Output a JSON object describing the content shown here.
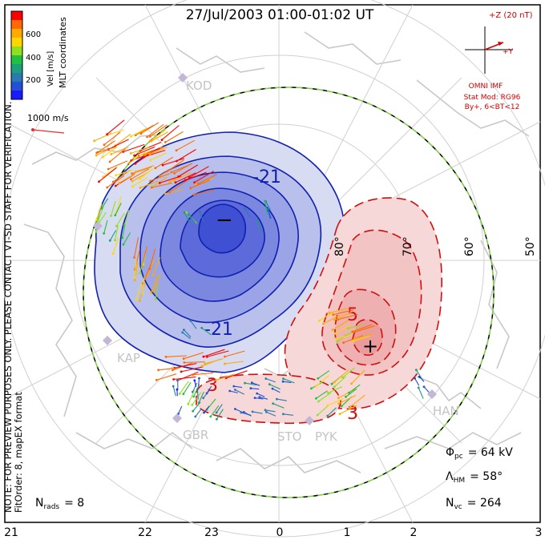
{
  "title": "27/Jul/2003 01:00-01:02 UT",
  "colorbar": {
    "ticks": [
      "600",
      "400",
      "200"
    ],
    "label": "Vel [m/s]",
    "colors": [
      "#ff0000",
      "#ff6a00",
      "#ffaa00",
      "#ffd700",
      "#90e020",
      "#20c040",
      "#1aa07a",
      "#2a7ab0",
      "#2450d8",
      "#1a1aff"
    ]
  },
  "coord_label": "MLT coordinates",
  "scale_vector": "1000 m/s",
  "imf": {
    "title": "+Z (20 nT)",
    "y_label": "+Y",
    "source": "OMNI IMF",
    "model": "Stat Mod: RG96",
    "condition": "By+, 6<BT<12"
  },
  "disclaimer": {
    "line1": "NOTE: FOR PREVIEW PURPOSES ONLY. PLEASE CONTACT VT-SD STAFF FOR VERIFICATION.",
    "line2": "FitOrder: 8, mapEX format"
  },
  "stations": [
    "KOD",
    "KAP",
    "GBR",
    "STO",
    "PYK",
    "HAN"
  ],
  "latitude_labels": [
    "80°",
    "70°",
    "60°",
    "50°"
  ],
  "mlt_ticks": [
    "21",
    "22",
    "23",
    "0",
    "1",
    "2",
    "3"
  ],
  "contours": {
    "neg_label": "-21",
    "pos_label_a": "5",
    "pos_label_b": "3",
    "neg_label_b": "3",
    "min_marker": "−",
    "max_marker": "+"
  },
  "stats": {
    "n_rads": "N",
    "n_rads_sub": "rads",
    "n_rads_value": "= 8",
    "phi": "Φ",
    "phi_sub": "pc",
    "phi_value": "= 64 kV",
    "lambda": "Λ",
    "lambda_sub": "HM",
    "lambda_value": "= 58°",
    "nvc": "N",
    "nvc_sub": "vc",
    "nvc_value": "= 264"
  }
}
